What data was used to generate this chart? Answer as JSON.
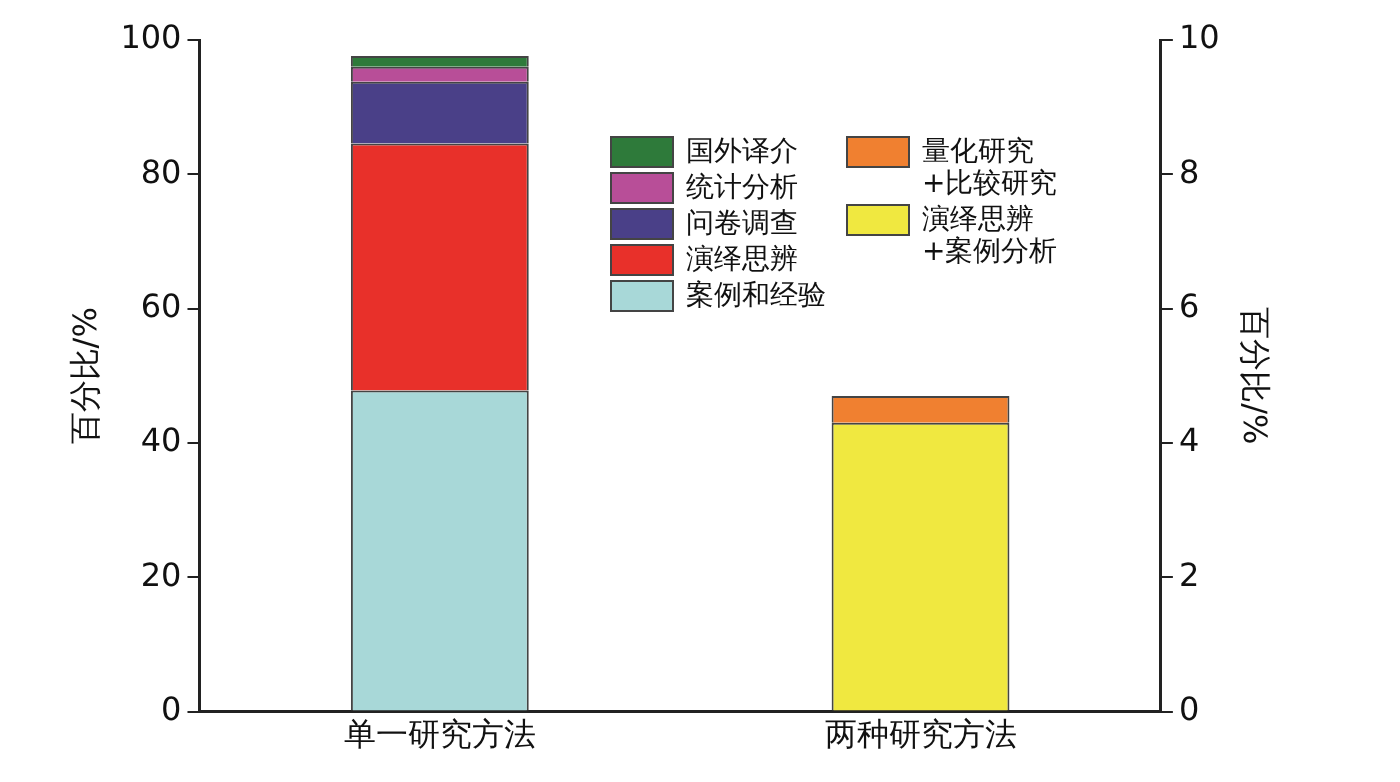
{
  "chart_data": {
    "type": "bar",
    "stacked": true,
    "categories": [
      "单一研究方法",
      "两种研究方法"
    ],
    "ylabel": "百分比/%",
    "y2label": "百分比/%",
    "ylim": [
      0,
      100
    ],
    "yticks": [
      0,
      20,
      40,
      60,
      80,
      100
    ],
    "y2lim": [
      0,
      10
    ],
    "y2ticks": [
      0,
      2,
      4,
      6,
      8,
      10
    ],
    "series": [
      {
        "name": "案例和经验",
        "color": "#a8d8d8",
        "values": [
          47.8,
          null
        ]
      },
      {
        "name": "演绎思辨",
        "color": "#e8302a",
        "values": [
          36.8,
          null
        ]
      },
      {
        "name": "问卷调查",
        "color": "#4a4088",
        "values": [
          9.2,
          null
        ]
      },
      {
        "name": "统计分析",
        "color": "#b84e98",
        "values": [
          2.2,
          null
        ]
      },
      {
        "name": "国外译介",
        "color": "#2e7a3a",
        "values": [
          1.6,
          null
        ]
      },
      {
        "name": "演绎思辨+案例分析",
        "color": "#f0e840",
        "values": [
          null,
          4.3
        ],
        "axis": "y2"
      },
      {
        "name": "量化研究+比较研究",
        "color": "#f08030",
        "values": [
          null,
          0.4
        ],
        "axis": "y2"
      }
    ],
    "grid": false,
    "legend": "top right"
  }
}
